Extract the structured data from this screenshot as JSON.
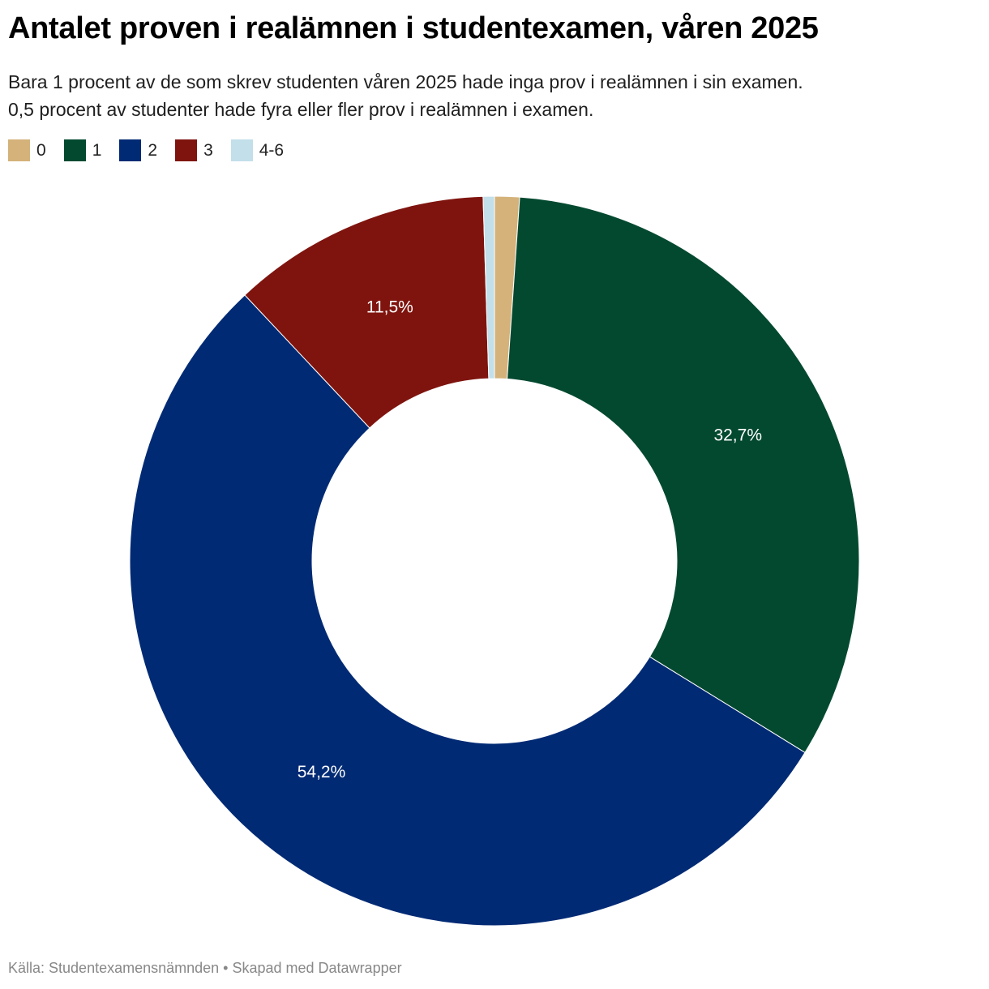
{
  "title": "Antalet proven i realämnen i studentexamen, våren 2025",
  "subtitle_lines": [
    "Bara 1 procent av de som skrev studenten våren 2025 hade inga prov i realämnen i sin examen.",
    "0,5 procent av studenter hade fyra eller fler prov i realämnen i examen."
  ],
  "chart_data": {
    "type": "pie",
    "variant": "donut",
    "categories": [
      "0",
      "1",
      "2",
      "3",
      "4-6"
    ],
    "values": [
      1.1,
      32.7,
      54.2,
      11.5,
      0.5
    ],
    "colors": [
      "#d4b27a",
      "#034930",
      "#012a74",
      "#7f140e",
      "#c2dfea"
    ],
    "data_labels": [
      "",
      "32,7%",
      "54,2%",
      "11,5%",
      ""
    ],
    "legend_position": "top-left"
  },
  "source": "Källa: Studentexamensnämnden • Skapad med Datawrapper"
}
